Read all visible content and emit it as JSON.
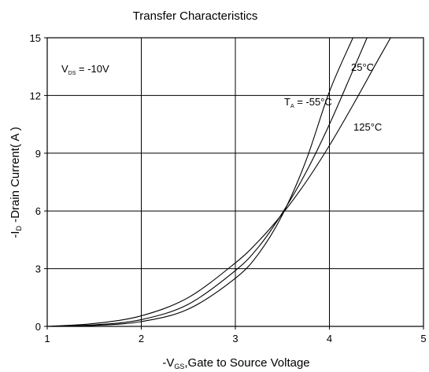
{
  "chart_data": {
    "type": "line",
    "title": "Transfer Characteristics",
    "xlabel": "-VGS,Gate to Source Voltage",
    "ylabel": "-ID -Drain Current( A )",
    "xlim": [
      1,
      5
    ],
    "ylim": [
      0,
      15
    ],
    "x_ticks": [
      "1",
      "2",
      "3",
      "4",
      "5"
    ],
    "y_ticks": [
      "0",
      "3",
      "6",
      "9",
      "12",
      "15"
    ],
    "grid": true,
    "annotations": {
      "condition": {
        "main": "V",
        "sub": "DS",
        "rest": " = -10V"
      }
    },
    "series": [
      {
        "name": "TA = -55°C",
        "label": {
          "main": "T",
          "sub": "A",
          "rest": " = -55°C"
        },
        "x": [
          1.0,
          1.5,
          2.0,
          2.5,
          3.0,
          3.25,
          3.5,
          3.75,
          4.0,
          4.25
        ],
        "y": [
          0.0,
          0.05,
          0.25,
          0.9,
          2.5,
          3.8,
          5.8,
          8.6,
          12.2,
          15.0
        ]
      },
      {
        "name": "25°C",
        "label": {
          "main": "25°C"
        },
        "x": [
          1.0,
          1.5,
          2.0,
          2.5,
          3.0,
          3.25,
          3.5,
          3.75,
          4.0,
          4.25,
          4.4
        ],
        "y": [
          0.0,
          0.08,
          0.35,
          1.15,
          2.9,
          4.15,
          5.9,
          8.0,
          10.5,
          13.3,
          15.0
        ]
      },
      {
        "name": "125°C",
        "label": {
          "main": "125°C"
        },
        "x": [
          1.0,
          1.5,
          2.0,
          2.5,
          3.0,
          3.25,
          3.5,
          3.75,
          4.0,
          4.25,
          4.5,
          4.65
        ],
        "y": [
          0.0,
          0.15,
          0.55,
          1.5,
          3.3,
          4.45,
          5.85,
          7.5,
          9.4,
          11.5,
          13.7,
          15.0
        ]
      }
    ]
  }
}
